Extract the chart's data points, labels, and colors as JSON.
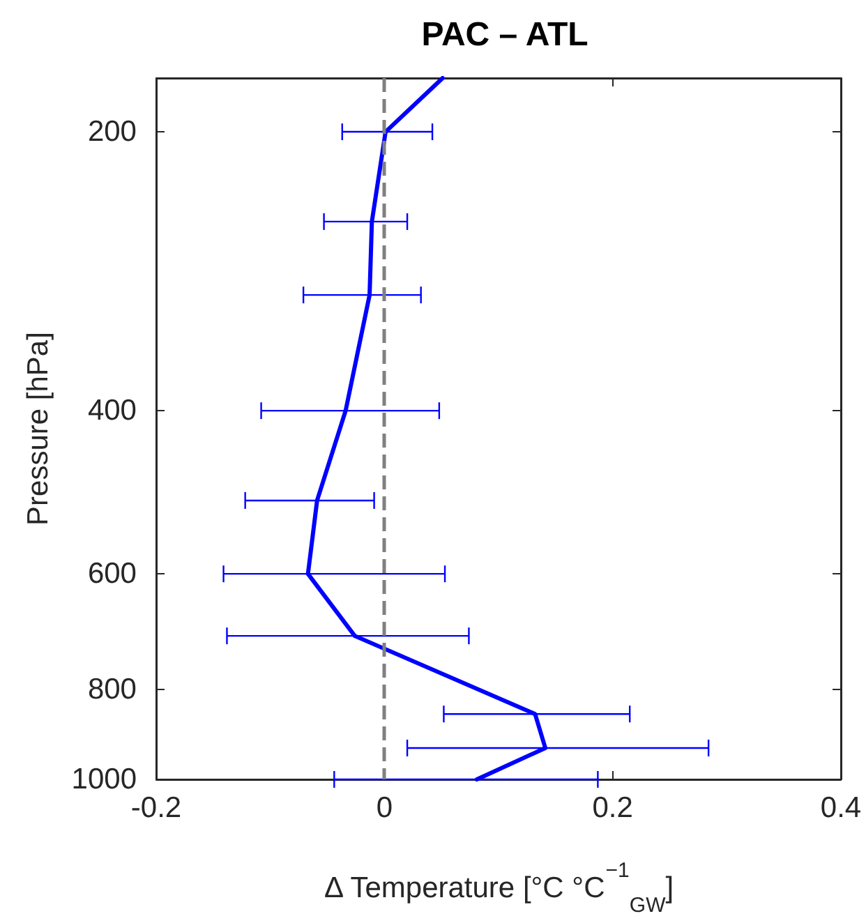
{
  "chart_data": {
    "type": "line",
    "title": "PAC – ATL",
    "xlabel": "Δ Temperature [°C °C$^{−1}$$_{GW}$]",
    "ylabel": "Pressure [hPa]",
    "series": [
      {
        "color": "#0000ff",
        "x": [
          0.051,
          0.001,
          -0.011,
          -0.013,
          -0.034,
          -0.059,
          -0.067,
          -0.026,
          0.132,
          0.141,
          0.081
        ],
        "values": [
          175,
          200,
          250,
          300,
          400,
          500,
          600,
          700,
          850,
          925,
          1000
        ],
        "xerrors": [
          null,
          [
            -0.037,
            0.042
          ],
          [
            -0.053,
            0.02
          ],
          [
            -0.071,
            0.032
          ],
          [
            -0.108,
            0.048
          ],
          [
            -0.122,
            -0.009
          ],
          [
            -0.141,
            0.053
          ],
          [
            -0.138,
            0.074
          ],
          [
            0.052,
            0.215
          ],
          [
            0.02,
            0.284
          ],
          [
            -0.044,
            0.187
          ]
        ]
      }
    ],
    "xlim": [
      -0.2,
      0.4
    ],
    "xticks": [
      -0.2,
      0,
      0.2,
      0.4
    ],
    "ylim": [
      1000,
      175
    ],
    "yticks": [
      200,
      400,
      600,
      800,
      1000
    ],
    "log": "y",
    "marker": "none",
    "line_style": "solid",
    "ref_lines": [
      {
        "axis": "x",
        "value": 0,
        "color": "#808080",
        "line_style": "dashed"
      }
    ]
  }
}
